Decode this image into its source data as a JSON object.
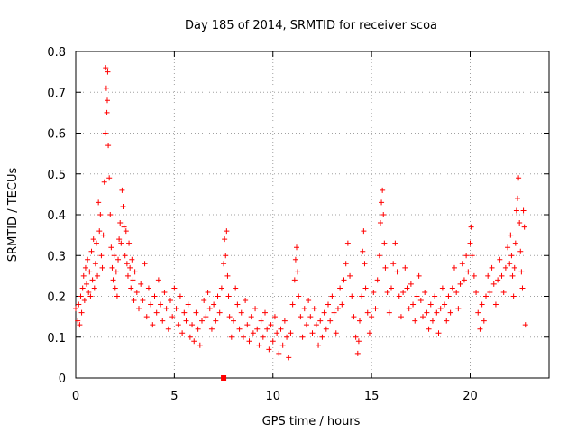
{
  "chart_data": {
    "type": "scatter",
    "title": "Day 185 of 2014, SRMTID for receiver scoa",
    "xlabel": "GPS time / hours",
    "ylabel": "SRMTID / TECUs",
    "xlim": [
      0,
      24
    ],
    "ylim": [
      0,
      0.8
    ],
    "xticks": [
      0,
      5,
      10,
      15,
      20
    ],
    "yticks": [
      0,
      0.1,
      0.2,
      0.3,
      0.4,
      0.5,
      0.6,
      0.7,
      0.8
    ],
    "xtick_labels": [
      "0",
      "5",
      "10",
      "15",
      "20"
    ],
    "ytick_labels": [
      "0",
      "0.1",
      "0.2",
      "0.3",
      "0.4",
      "0.5",
      "0.6",
      "0.7",
      "0.8"
    ],
    "grid": true,
    "marker": "plus",
    "color": "#ff0000",
    "special_marker": {
      "x": 7.5,
      "y": 0.0,
      "shape": "square"
    },
    "series": [
      {
        "name": "SRMTID",
        "points": [
          [
            0.0,
            0.17
          ],
          [
            0.1,
            0.14
          ],
          [
            0.15,
            0.18
          ],
          [
            0.2,
            0.13
          ],
          [
            0.25,
            0.2
          ],
          [
            0.3,
            0.16
          ],
          [
            0.35,
            0.22
          ],
          [
            0.4,
            0.25
          ],
          [
            0.45,
            0.19
          ],
          [
            0.5,
            0.27
          ],
          [
            0.55,
            0.23
          ],
          [
            0.6,
            0.29
          ],
          [
            0.65,
            0.21
          ],
          [
            0.7,
            0.26
          ],
          [
            0.75,
            0.2
          ],
          [
            0.8,
            0.31
          ],
          [
            0.85,
            0.24
          ],
          [
            0.9,
            0.34
          ],
          [
            0.95,
            0.22
          ],
          [
            1.0,
            0.28
          ],
          [
            1.05,
            0.33
          ],
          [
            1.1,
            0.25
          ],
          [
            1.15,
            0.43
          ],
          [
            1.2,
            0.36
          ],
          [
            1.25,
            0.4
          ],
          [
            1.3,
            0.3
          ],
          [
            1.35,
            0.27
          ],
          [
            1.4,
            0.35
          ],
          [
            1.45,
            0.48
          ],
          [
            1.5,
            0.6
          ],
          [
            1.52,
            0.76
          ],
          [
            1.55,
            0.71
          ],
          [
            1.58,
            0.65
          ],
          [
            1.6,
            0.68
          ],
          [
            1.62,
            0.75
          ],
          [
            1.65,
            0.57
          ],
          [
            1.7,
            0.49
          ],
          [
            1.75,
            0.4
          ],
          [
            1.8,
            0.32
          ],
          [
            1.85,
            0.27
          ],
          [
            1.9,
            0.24
          ],
          [
            1.95,
            0.3
          ],
          [
            2.0,
            0.22
          ],
          [
            2.05,
            0.26
          ],
          [
            2.1,
            0.2
          ],
          [
            2.15,
            0.29
          ],
          [
            2.2,
            0.34
          ],
          [
            2.25,
            0.38
          ],
          [
            2.3,
            0.33
          ],
          [
            2.35,
            0.46
          ],
          [
            2.4,
            0.42
          ],
          [
            2.45,
            0.37
          ],
          [
            2.5,
            0.3
          ],
          [
            2.55,
            0.36
          ],
          [
            2.6,
            0.28
          ],
          [
            2.65,
            0.25
          ],
          [
            2.7,
            0.33
          ],
          [
            2.75,
            0.27
          ],
          [
            2.8,
            0.22
          ],
          [
            2.85,
            0.29
          ],
          [
            2.9,
            0.24
          ],
          [
            2.95,
            0.19
          ],
          [
            3.0,
            0.26
          ],
          [
            3.1,
            0.21
          ],
          [
            3.2,
            0.17
          ],
          [
            3.3,
            0.23
          ],
          [
            3.4,
            0.19
          ],
          [
            3.5,
            0.28
          ],
          [
            3.6,
            0.15
          ],
          [
            3.7,
            0.22
          ],
          [
            3.8,
            0.18
          ],
          [
            3.9,
            0.13
          ],
          [
            4.0,
            0.2
          ],
          [
            4.1,
            0.16
          ],
          [
            4.2,
            0.24
          ],
          [
            4.3,
            0.18
          ],
          [
            4.4,
            0.14
          ],
          [
            4.5,
            0.21
          ],
          [
            4.6,
            0.17
          ],
          [
            4.7,
            0.12
          ],
          [
            4.8,
            0.19
          ],
          [
            4.9,
            0.15
          ],
          [
            5.0,
            0.22
          ],
          [
            5.1,
            0.17
          ],
          [
            5.2,
            0.13
          ],
          [
            5.3,
            0.2
          ],
          [
            5.4,
            0.11
          ],
          [
            5.5,
            0.16
          ],
          [
            5.6,
            0.14
          ],
          [
            5.7,
            0.18
          ],
          [
            5.8,
            0.1
          ],
          [
            5.9,
            0.13
          ],
          [
            6.0,
            0.09
          ],
          [
            6.1,
            0.16
          ],
          [
            6.2,
            0.12
          ],
          [
            6.3,
            0.08
          ],
          [
            6.4,
            0.14
          ],
          [
            6.5,
            0.19
          ],
          [
            6.6,
            0.15
          ],
          [
            6.7,
            0.21
          ],
          [
            6.8,
            0.17
          ],
          [
            6.9,
            0.12
          ],
          [
            7.0,
            0.18
          ],
          [
            7.1,
            0.14
          ],
          [
            7.2,
            0.2
          ],
          [
            7.3,
            0.16
          ],
          [
            7.4,
            0.22
          ],
          [
            7.5,
            0.28
          ],
          [
            7.55,
            0.34
          ],
          [
            7.6,
            0.3
          ],
          [
            7.65,
            0.36
          ],
          [
            7.7,
            0.25
          ],
          [
            7.75,
            0.2
          ],
          [
            7.8,
            0.15
          ],
          [
            7.9,
            0.1
          ],
          [
            8.0,
            0.14
          ],
          [
            8.1,
            0.22
          ],
          [
            8.2,
            0.18
          ],
          [
            8.3,
            0.12
          ],
          [
            8.4,
            0.16
          ],
          [
            8.5,
            0.1
          ],
          [
            8.6,
            0.19
          ],
          [
            8.7,
            0.13
          ],
          [
            8.8,
            0.09
          ],
          [
            8.9,
            0.15
          ],
          [
            9.0,
            0.11
          ],
          [
            9.1,
            0.17
          ],
          [
            9.2,
            0.12
          ],
          [
            9.3,
            0.08
          ],
          [
            9.4,
            0.14
          ],
          [
            9.5,
            0.1
          ],
          [
            9.6,
            0.16
          ],
          [
            9.7,
            0.12
          ],
          [
            9.8,
            0.07
          ],
          [
            9.9,
            0.13
          ],
          [
            10.0,
            0.09
          ],
          [
            10.1,
            0.15
          ],
          [
            10.2,
            0.11
          ],
          [
            10.3,
            0.06
          ],
          [
            10.4,
            0.12
          ],
          [
            10.5,
            0.08
          ],
          [
            10.6,
            0.14
          ],
          [
            10.7,
            0.1
          ],
          [
            10.8,
            0.05
          ],
          [
            10.9,
            0.11
          ],
          [
            11.0,
            0.18
          ],
          [
            11.1,
            0.24
          ],
          [
            11.15,
            0.29
          ],
          [
            11.2,
            0.32
          ],
          [
            11.25,
            0.26
          ],
          [
            11.3,
            0.2
          ],
          [
            11.4,
            0.15
          ],
          [
            11.5,
            0.1
          ],
          [
            11.6,
            0.17
          ],
          [
            11.7,
            0.13
          ],
          [
            11.8,
            0.19
          ],
          [
            11.9,
            0.15
          ],
          [
            12.0,
            0.11
          ],
          [
            12.1,
            0.17
          ],
          [
            12.2,
            0.13
          ],
          [
            12.3,
            0.08
          ],
          [
            12.4,
            0.14
          ],
          [
            12.5,
            0.1
          ],
          [
            12.6,
            0.16
          ],
          [
            12.7,
            0.12
          ],
          [
            12.8,
            0.18
          ],
          [
            12.9,
            0.14
          ],
          [
            13.0,
            0.2
          ],
          [
            13.1,
            0.16
          ],
          [
            13.2,
            0.11
          ],
          [
            13.3,
            0.17
          ],
          [
            13.4,
            0.22
          ],
          [
            13.5,
            0.18
          ],
          [
            13.6,
            0.24
          ],
          [
            13.7,
            0.28
          ],
          [
            13.8,
            0.33
          ],
          [
            13.9,
            0.25
          ],
          [
            14.0,
            0.2
          ],
          [
            14.1,
            0.15
          ],
          [
            14.2,
            0.1
          ],
          [
            14.3,
            0.06
          ],
          [
            14.35,
            0.09
          ],
          [
            14.4,
            0.14
          ],
          [
            14.5,
            0.2
          ],
          [
            14.55,
            0.31
          ],
          [
            14.6,
            0.36
          ],
          [
            14.65,
            0.28
          ],
          [
            14.7,
            0.22
          ],
          [
            14.8,
            0.16
          ],
          [
            14.9,
            0.11
          ],
          [
            15.0,
            0.15
          ],
          [
            15.1,
            0.21
          ],
          [
            15.2,
            0.17
          ],
          [
            15.3,
            0.24
          ],
          [
            15.4,
            0.3
          ],
          [
            15.45,
            0.38
          ],
          [
            15.5,
            0.43
          ],
          [
            15.55,
            0.46
          ],
          [
            15.6,
            0.4
          ],
          [
            15.65,
            0.33
          ],
          [
            15.7,
            0.27
          ],
          [
            15.8,
            0.21
          ],
          [
            15.9,
            0.16
          ],
          [
            16.0,
            0.22
          ],
          [
            16.1,
            0.28
          ],
          [
            16.2,
            0.33
          ],
          [
            16.3,
            0.26
          ],
          [
            16.4,
            0.2
          ],
          [
            16.5,
            0.15
          ],
          [
            16.6,
            0.21
          ],
          [
            16.7,
            0.27
          ],
          [
            16.8,
            0.22
          ],
          [
            16.9,
            0.17
          ],
          [
            17.0,
            0.23
          ],
          [
            17.1,
            0.18
          ],
          [
            17.2,
            0.14
          ],
          [
            17.3,
            0.2
          ],
          [
            17.4,
            0.25
          ],
          [
            17.5,
            0.19
          ],
          [
            17.6,
            0.15
          ],
          [
            17.7,
            0.21
          ],
          [
            17.8,
            0.16
          ],
          [
            17.9,
            0.12
          ],
          [
            18.0,
            0.18
          ],
          [
            18.1,
            0.14
          ],
          [
            18.2,
            0.2
          ],
          [
            18.3,
            0.16
          ],
          [
            18.4,
            0.11
          ],
          [
            18.5,
            0.17
          ],
          [
            18.6,
            0.22
          ],
          [
            18.7,
            0.18
          ],
          [
            18.8,
            0.14
          ],
          [
            18.9,
            0.2
          ],
          [
            19.0,
            0.16
          ],
          [
            19.1,
            0.22
          ],
          [
            19.2,
            0.27
          ],
          [
            19.3,
            0.21
          ],
          [
            19.4,
            0.17
          ],
          [
            19.5,
            0.23
          ],
          [
            19.6,
            0.28
          ],
          [
            19.7,
            0.24
          ],
          [
            19.8,
            0.3
          ],
          [
            19.9,
            0.26
          ],
          [
            20.0,
            0.33
          ],
          [
            20.05,
            0.37
          ],
          [
            20.1,
            0.3
          ],
          [
            20.2,
            0.25
          ],
          [
            20.3,
            0.21
          ],
          [
            20.4,
            0.16
          ],
          [
            20.5,
            0.12
          ],
          [
            20.6,
            0.18
          ],
          [
            20.7,
            0.14
          ],
          [
            20.8,
            0.2
          ],
          [
            20.9,
            0.25
          ],
          [
            21.0,
            0.21
          ],
          [
            21.1,
            0.27
          ],
          [
            21.2,
            0.23
          ],
          [
            21.3,
            0.18
          ],
          [
            21.4,
            0.24
          ],
          [
            21.5,
            0.29
          ],
          [
            21.6,
            0.25
          ],
          [
            21.7,
            0.21
          ],
          [
            21.8,
            0.27
          ],
          [
            21.9,
            0.32
          ],
          [
            22.0,
            0.28
          ],
          [
            22.05,
            0.35
          ],
          [
            22.1,
            0.3
          ],
          [
            22.15,
            0.25
          ],
          [
            22.2,
            0.2
          ],
          [
            22.25,
            0.27
          ],
          [
            22.3,
            0.33
          ],
          [
            22.35,
            0.41
          ],
          [
            22.4,
            0.44
          ],
          [
            22.45,
            0.49
          ],
          [
            22.5,
            0.38
          ],
          [
            22.55,
            0.31
          ],
          [
            22.6,
            0.26
          ],
          [
            22.65,
            0.22
          ],
          [
            22.7,
            0.41
          ],
          [
            22.75,
            0.37
          ],
          [
            22.8,
            0.13
          ]
        ]
      }
    ]
  }
}
